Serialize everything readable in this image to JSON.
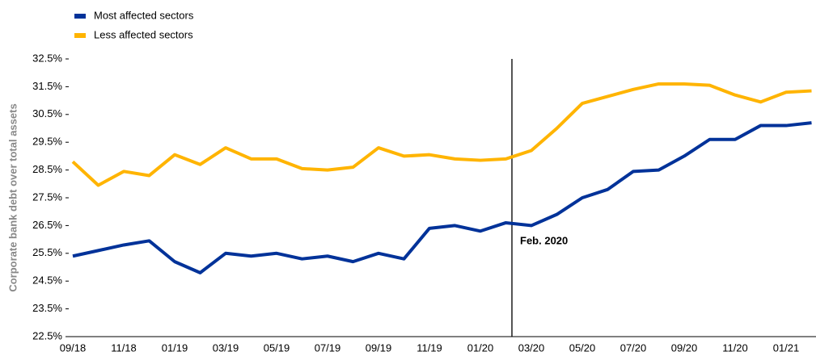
{
  "chart_data": {
    "type": "line",
    "y_label": "Corporate bank debt over total assets",
    "annotation": "Feb. 2020",
    "categories": [
      "09/18",
      null,
      "11/18",
      null,
      "01/19",
      null,
      "03/19",
      null,
      "05/19",
      null,
      "07/19",
      null,
      "09/19",
      null,
      "11/19",
      null,
      "01/20",
      null,
      "03/20",
      null,
      "05/20",
      null,
      "07/20",
      null,
      "09/20",
      null,
      "11/20",
      null,
      "01/21",
      null
    ],
    "series": [
      {
        "name": "Most affected sectors",
        "color": "#003299",
        "values": [
          25.4,
          25.6,
          25.8,
          25.95,
          25.2,
          24.8,
          25.5,
          25.4,
          25.5,
          25.3,
          25.4,
          25.2,
          25.5,
          25.3,
          26.4,
          26.5,
          26.3,
          26.6,
          26.5,
          26.9,
          27.5,
          27.8,
          28.45,
          28.5,
          29.0,
          29.6,
          29.6,
          30.1,
          30.1,
          30.2
        ]
      },
      {
        "name": "Less affected sectors",
        "color": "#ffb400",
        "values": [
          28.8,
          27.95,
          28.45,
          28.3,
          29.05,
          28.7,
          29.3,
          28.9,
          28.9,
          28.55,
          28.5,
          28.6,
          29.3,
          29.0,
          29.05,
          28.9,
          28.85,
          28.9,
          29.2,
          30.0,
          30.9,
          31.15,
          31.4,
          31.6,
          31.6,
          31.55,
          31.2,
          30.95,
          31.3,
          31.35
        ]
      }
    ],
    "ylim": [
      22.5,
      32.5
    ],
    "yticks": [
      {
        "value": 22.5,
        "label": "22.5%"
      },
      {
        "value": 23.5,
        "label": "23.5%"
      },
      {
        "value": 24.5,
        "label": "24.5%"
      },
      {
        "value": 25.5,
        "label": "25.5%"
      },
      {
        "value": 26.5,
        "label": "26.5%"
      },
      {
        "value": 27.5,
        "label": "27.5%"
      },
      {
        "value": 28.5,
        "label": "28.5%"
      },
      {
        "value": 29.5,
        "label": "29.5%"
      },
      {
        "value": 30.5,
        "label": "30.5%"
      },
      {
        "value": 31.5,
        "label": "31.5%"
      },
      {
        "value": 32.5,
        "label": "32.5%"
      }
    ],
    "grid": false
  }
}
